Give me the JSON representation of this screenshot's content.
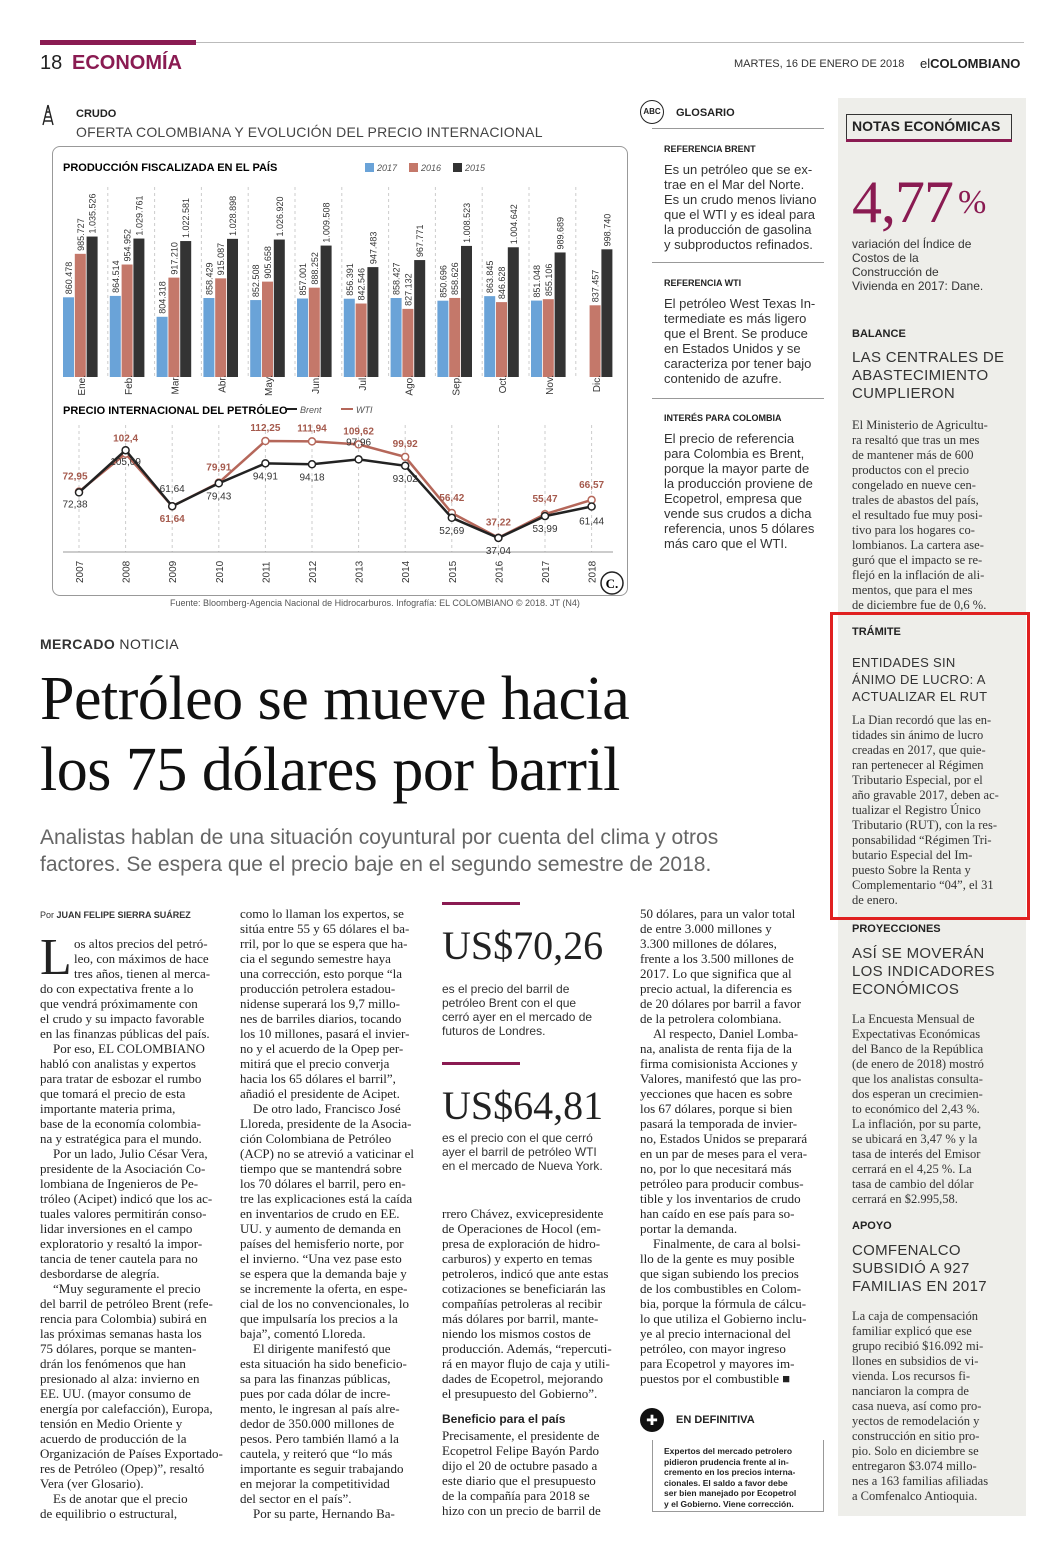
{
  "header": {
    "page_number": "18",
    "section": "ECONOMÍA",
    "date": "MARTES, 16 DE ENERO DE 2018",
    "brand_prefix": "el",
    "brand_main": "COLOMBIANO"
  },
  "infographic": {
    "kicker": "CRUDO",
    "title": "OFERTA COLOMBIANA Y EVOLUCIÓN DEL PRECIO INTERNACIONAL",
    "source": "Fuente: Bloomberg-Agencia Nacional de Hidrocarburos. Infografía: EL COLOMBIANO © 2018. JT (N4)",
    "logo": "C."
  },
  "chart_data": [
    {
      "type": "bar",
      "title": "PRODUCCIÓN FISCALIZADA EN EL PAÍS",
      "categories": [
        "Ene.",
        "Feb.",
        "Mar.",
        "Abr.",
        "May.",
        "Jun.",
        "Jul.",
        "Ago.",
        "Sep.",
        "Oct.",
        "Nov.",
        "Dic."
      ],
      "series": [
        {
          "name": "2017",
          "color": "#6aa3d8",
          "values": [
            860478,
            864514,
            804318,
            858429,
            852508,
            857001,
            856391,
            858427,
            850696,
            863845,
            851048,
            null
          ],
          "labels": [
            "860.478",
            "864.514",
            "804.318",
            "858.429",
            "852.508",
            "857.001",
            "856.391",
            "858.427",
            "850.696",
            "863.845",
            "851.048",
            ""
          ]
        },
        {
          "name": "2016",
          "color": "#c4786a",
          "values": [
            985727,
            954952,
            917210,
            915087,
            905658,
            888252,
            842546,
            827132,
            858626,
            846628,
            855106,
            837457
          ],
          "labels": [
            "985.727",
            "954.952",
            "917.210",
            "915.087",
            "905.658",
            "888.252",
            "842.546",
            "827.132",
            "858.626",
            "846.628",
            "855.106",
            "837.457"
          ]
        },
        {
          "name": "2015",
          "color": "#333333",
          "values": [
            1035526,
            1029761,
            1022581,
            1028898,
            1026920,
            1009508,
            947483,
            967771,
            1008523,
            1004642,
            989689,
            998740
          ],
          "labels": [
            "1.035.526",
            "1.029.761",
            "1.022.581",
            "1.028.898",
            "1.026.920",
            "1.009.508",
            "947.483",
            "967.771",
            "1.008.523",
            "1.004.642",
            "989.689",
            "998.740"
          ]
        }
      ]
    },
    {
      "type": "line",
      "title": "PRECIO INTERNACIONAL DEL PETRÓLEO",
      "x": [
        "2007",
        "2008",
        "2009",
        "2010",
        "2011",
        "2012",
        "2013",
        "2014",
        "2015",
        "2016",
        "2017",
        "2018"
      ],
      "series": [
        {
          "name": "Brent",
          "color": "#222222",
          "values": [
            72.38,
            105.09,
            61.64,
            79.43,
            94.91,
            94.18,
            97.96,
            93.02,
            52.69,
            37.04,
            53.99,
            61.44
          ],
          "labels": [
            "72,38",
            "105,09",
            "61,64",
            "79,43",
            "94,91",
            "94,18",
            "97,96",
            "93,02",
            "52,69",
            "37,04",
            "53,99",
            "61,44"
          ]
        },
        {
          "name": "WTI",
          "color": "#b5675a",
          "values": [
            72.95,
            102.4,
            61.64,
            79.91,
            112.25,
            111.94,
            109.62,
            99.92,
            56.42,
            37.22,
            55.47,
            66.57
          ],
          "labels": [
            "72,95",
            "102,4",
            "61,64",
            "79,91",
            "112,25",
            "111,94",
            "109,62",
            "99,92",
            "56,42",
            "37,22",
            "55,47",
            "66,57"
          ]
        }
      ]
    }
  ],
  "glossary": {
    "icon": "ABC",
    "title": "GLOSARIO",
    "entries": [
      {
        "head": "REFERENCIA BRENT",
        "lines": [
          "Es un petróleo que se ex-",
          "trae en el Mar del Norte.",
          "Es un crudo menos liviano",
          "que el WTI y es ideal para",
          "la producción de gasolina",
          "y subproductos refinados."
        ]
      },
      {
        "head": "REFERENCIA WTI",
        "lines": [
          "El petróleo West Texas In-",
          "termediate es más ligero",
          "que el Brent. Se produce",
          "en Estados Unidos y se",
          "caracteriza por tener bajo",
          "contenido de azufre."
        ]
      },
      {
        "head": "INTERÉS PARA COLOMBIA",
        "lines": [
          "El precio de referencia",
          "para Colombia es Brent,",
          "porque la mayor parte de",
          "la producción proviene de",
          "Ecopetrol, empresa que",
          "vende sus crudos a dicha",
          "referencia, unos 5 dólares",
          "más caro que el WTI."
        ]
      }
    ]
  },
  "sidebar": {
    "title": "NOTAS ECONÓMICAS",
    "big_number": "4,77",
    "big_sign": "%",
    "big_text": [
      "variación del Índice de",
      "Costos de la",
      "Construcción de",
      "Vivienda en 2017: Dane."
    ],
    "notes": [
      {
        "kicker": "BALANCE",
        "head": [
          "LAS CENTRALES DE",
          "ABASTECIMIENTO",
          "CUMPLIERON"
        ],
        "body": [
          "El Ministerio de Agricultu-",
          "ra resaltó que tras un mes",
          "de mantener más de 600",
          "productos con el precio",
          "congelado en nueve cen-",
          "trales de abastos del país,",
          "el resultado fue muy posi-",
          "tivo para los hogares co-",
          "lombianos. La cartera ase-",
          "guró que el impacto se re-",
          "flejó en la inflación de ali-",
          "mentos, que para el mes",
          "de diciembre fue de 0,6 %."
        ]
      },
      {
        "kicker": "TRÁMITE",
        "head": [
          "ENTIDADES SIN",
          "ÁNIMO DE LUCRO: A",
          "ACTUALIZAR EL RUT"
        ],
        "body": [
          "La Dian recordó que las en-",
          "tidades sin ánimo de lucro",
          "creadas en 2017, que quie-",
          "ran pertenecer al Régimen",
          "Tributario Especial, por el",
          "año gravable 2017, deben ac-",
          "tualizar el Registro Único",
          "Tributario (RUT), con la res-",
          "ponsabilidad “Régimen Tri-",
          "butario Especial del Im-",
          "puesto Sobre la Renta y",
          "Complementario “04”, el 31",
          "de enero."
        ]
      },
      {
        "kicker": "PROYECCIONES",
        "head": [
          "ASÍ SE MOVERÁN",
          "LOS INDICADORES",
          "ECONÓMICOS"
        ],
        "body": [
          "La Encuesta Mensual de",
          "Expectativas Económicas",
          "del Banco de la República",
          "(de enero de 2018) mostró",
          "que los analistas consulta-",
          "dos esperan un crecimien-",
          "to económico del 2,43 %.",
          "La inflación, por su parte,",
          "se ubicará en 3,47 % y la",
          "tasa de interés del Emisor",
          "cerrará en el 4,25 %. La",
          "tasa de cambio del dólar",
          "cerrará en $2.995,58."
        ]
      },
      {
        "kicker": "APOYO",
        "head": [
          "COMFENALCO",
          "SUBSIDIÓ A 927",
          "FAMILIAS EN 2017"
        ],
        "body": [
          "La caja de compensación",
          "familiar explicó que ese",
          "grupo recibió $16.092 mi-",
          "llones en subsidios de vi-",
          "vienda. Los recursos fi-",
          "nanciaron la compra de",
          "casa nueva, así como pro-",
          "yectos de remodelación y",
          "construcción en sitio pro-",
          "pio. Solo en diciembre se",
          "entregaron $3.074 millo-",
          "nes a 163 familias afiliadas",
          "a Comfenalco Antioquia."
        ]
      }
    ]
  },
  "article": {
    "kicker_bold": "MERCADO",
    "kicker_rest": " NOTICIA",
    "headline_1": "Petróleo se mueve hacia",
    "headline_2": "los 75 dólares por barril",
    "deck_1": "Analistas hablan de una situación coyuntural por cuenta del clima y otros",
    "deck_2": "factores. Se espera que el precio baje en el segundo semestre de 2018.",
    "byline_prefix": "Por ",
    "byline_name": "JUAN FELIPE SIERRA SUÁREZ",
    "dropcap": "L",
    "col1": [
      "os altos precios del petró-",
      "leo, con máximos de hace",
      "tres años, tienen al merca-",
      "do con expectativa frente a lo",
      "que vendrá próximamente con",
      "el crudo y su impacto favorable",
      "en las finanzas públicas del país.",
      "    Por eso, EL COLOMBIANO",
      "habló con analistas y expertos",
      "para tratar de esbozar el rumbo",
      "que tomará el precio de esta",
      "importante materia prima,",
      "base de la economía colombia-",
      "na y estratégica para el mundo.",
      "    Por un lado, Julio César Vera,",
      "presidente de la Asociación Co-",
      "lombiana de Ingenieros de Pe-",
      "tróleo (Acipet) indicó que los ac-",
      "tuales valores permitirán conso-",
      "lidar inversiones en el campo",
      "exploratorio y resaltó la impor-",
      "tancia de tener cautela para no",
      "desbordarse de alegría.",
      "    “Muy seguramente el precio",
      "del barril de petróleo Brent (refe-",
      "rencia para Colombia) subirá en",
      "las próximas semanas hasta los",
      "75 dólares, porque se manten-",
      "drán los fenómenos que han",
      "presionado al alza: invierno en",
      "EE. UU. (mayor consumo de",
      "energía por calefacción), Europa,",
      "tensión en Medio Oriente y",
      "acuerdo de producción de la",
      "Organización de Países Exportado-",
      "res de Petróleo (Opep)”, resaltó",
      "Vera (ver Glosario).",
      "    Es de anotar que el precio",
      "de equilibrio o estructural,"
    ],
    "col2": [
      "como lo llaman los expertos, se",
      "sitúa entre 55 y 65 dólares el ba-",
      "rril, por lo que se espera que ha-",
      "cia el segundo semestre haya",
      "una corrección, esto porque “la",
      "producción petrolera estadou-",
      "nidense superará los 9,7 millo-",
      "nes de barriles diarios, tocando",
      "los 10 millones, pasará el invier-",
      "no y el acuerdo de la Opep per-",
      "mitirá que el precio converja",
      "hacia los 65 dólares el barril”,",
      "añadió el presidente de Acipet.",
      "    De otro lado, Francisco José",
      "Lloreda, presidente de la Asocia-",
      "ción Colombiana de Petróleo",
      "(ACP) no se atrevió a vaticinar el",
      "tiempo que se mantendrá sobre",
      "los 70 dólares el barril, pero en-",
      "tre las explicaciones está la caída",
      "en inventarios de crudo en EE.",
      "UU. y aumento de demanda en",
      "países del hemisferio norte, por",
      "el invierno. “Una vez pase esto",
      "se espera que la demanda baje y",
      "se incremente la oferta, en espe-",
      "cial de los no convencionales, lo",
      "que impulsaría los precios a la",
      "baja”, comentó Lloreda.",
      "    El dirigente manifestó que",
      "esta situación ha sido beneficio-",
      "sa para las finanzas públicas,",
      "pues por cada dólar de incre-",
      "mento, le ingresan al país alre-",
      "dedor de 350.000 millones de",
      "pesos. Pero también llamó a la",
      "cautela, y reiteró que “lo más",
      "importante es seguir trabajando",
      "en mejorar la competitividad",
      "del sector en el país”.",
      "    Por su parte, Hernando Ba-"
    ],
    "col3": [
      "rrero Chávez, exvicepresidente",
      "de Operaciones de Hocol (em-",
      "presa de exploración de hidro-",
      "carburos) y experto en temas",
      "petroleros, indicó que ante estas",
      "cotizaciones se beneficiarán las",
      "compañías petroleras al recibir",
      "más dólares por barril, mante-",
      "niendo los mismos costos de",
      "producción. Además, “repercuti-",
      "rá en mayor flujo de caja y utili-",
      "dades de Ecopetrol, mejorando",
      "el presupuesto del Gobierno”."
    ],
    "subhead": "Beneficio para el país",
    "col3b": [
      "Precisamente, el presidente de",
      "Ecopetrol Felipe Bayón Pardo",
      "dijo el 20 de octubre pasado a",
      "este diario que el presupuesto",
      "de la compañía para 2018 se",
      "hizo con un precio de barril de"
    ],
    "col4": [
      "50 dólares, para un valor total",
      "de entre 3.000 millones y",
      "3.300 millones de dólares,",
      "frente a los 3.500 millones de",
      "2017. Lo que significa que al",
      "precio actual, la diferencia es",
      "de 20 dólares por barril a favor",
      "de la petrolera colombiana.",
      "    Al respecto, Daniel Lomba-",
      "na, analista de renta fija de la",
      "firma comisionista Acciones y",
      "Valores, manifestó que las pro-",
      "yecciones que hacen es sobre",
      "los 67 dólares, porque si bien",
      "pasará la temporada de invier-",
      "no, Estados Unidos se preparará",
      "en un par de meses para el vera-",
      "no, por lo que necesitará más",
      "petróleo para producir combus-",
      "tible y los inventarios de crudo",
      "han caído en ese país para so-",
      "portar la demanda.",
      "    Finalmente, de cara al bolsi-",
      "llo de la gente es muy posible",
      "que sigan subiendo los precios",
      "de los combustibles en Colom-",
      "bia, porque la fórmula de cálcu-",
      "lo que utiliza el Gobierno inclu-",
      "ye al precio internacional del",
      "petróleo, con mayor ingreso",
      "para Ecopetrol y mayores im-",
      "puestos por el combustible ■"
    ]
  },
  "prices": [
    {
      "value": "US$70,26",
      "text": [
        "es el precio del barril de",
        "petróleo Brent con el que",
        "cerró ayer en el mercado de",
        "futuros de Londres."
      ]
    },
    {
      "value": "US$64,81",
      "text": [
        "es el precio con el que cerró",
        "ayer el barril de petróleo WTI",
        "en el mercado de Nueva York."
      ]
    }
  ],
  "definitiva": {
    "title": "EN DEFINITIVA",
    "text": [
      "Expertos del mercado petrolero",
      "pidieron prudencia frente al in-",
      "cremento en los precios interna-",
      "cionales. El saldo a favor debe",
      "ser bien manejado por Ecopetrol",
      "y el Gobierno. Viene corrección."
    ]
  },
  "colors": {
    "accent": "#8a1b52",
    "highlight": "#e02020",
    "sidebar_bg": "#eeeeea"
  }
}
